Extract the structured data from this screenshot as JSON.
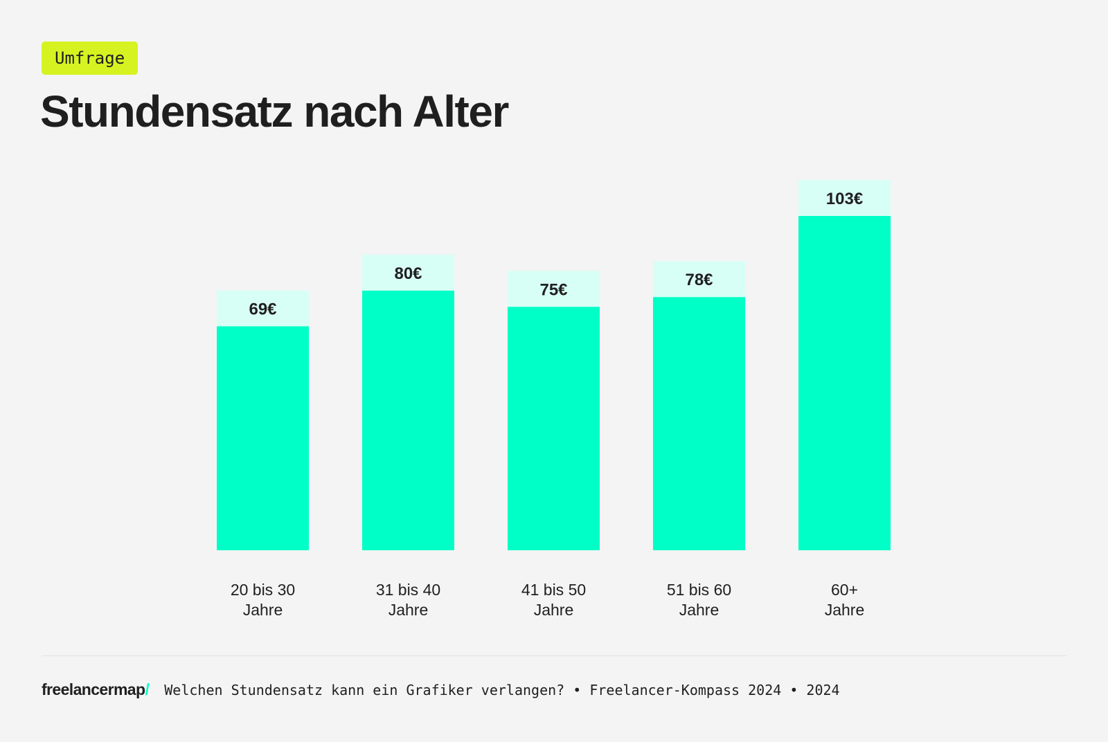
{
  "tag": "Umfrage",
  "title": "Stundensatz nach Alter",
  "colors": {
    "background": "#f4f4f4",
    "bar": "#00ffc6",
    "label_box": "#d8fff6",
    "tag": "#d6f321",
    "text": "#1f1f1f"
  },
  "chart_data": {
    "type": "bar",
    "title": "Stundensatz nach Alter",
    "categories": [
      [
        "20 bis 30",
        "Jahre"
      ],
      [
        "31 bis 40",
        "Jahre"
      ],
      [
        "41 bis 50",
        "Jahre"
      ],
      [
        "51 bis 60",
        "Jahre"
      ],
      [
        "60+",
        "Jahre"
      ]
    ],
    "values": [
      69,
      80,
      75,
      78,
      103
    ],
    "data_labels": [
      "69€",
      "80€",
      "75€",
      "78€",
      "103€"
    ],
    "unit": "€",
    "xlabel": "",
    "ylabel": "",
    "ylim": [
      0,
      103
    ],
    "grid": false
  },
  "footer": {
    "logo_text": "freelancermap",
    "logo_mark": "/",
    "source": "Welchen Stundensatz kann ein Grafiker verlangen? • Freelancer-Kompass 2024 • 2024"
  }
}
